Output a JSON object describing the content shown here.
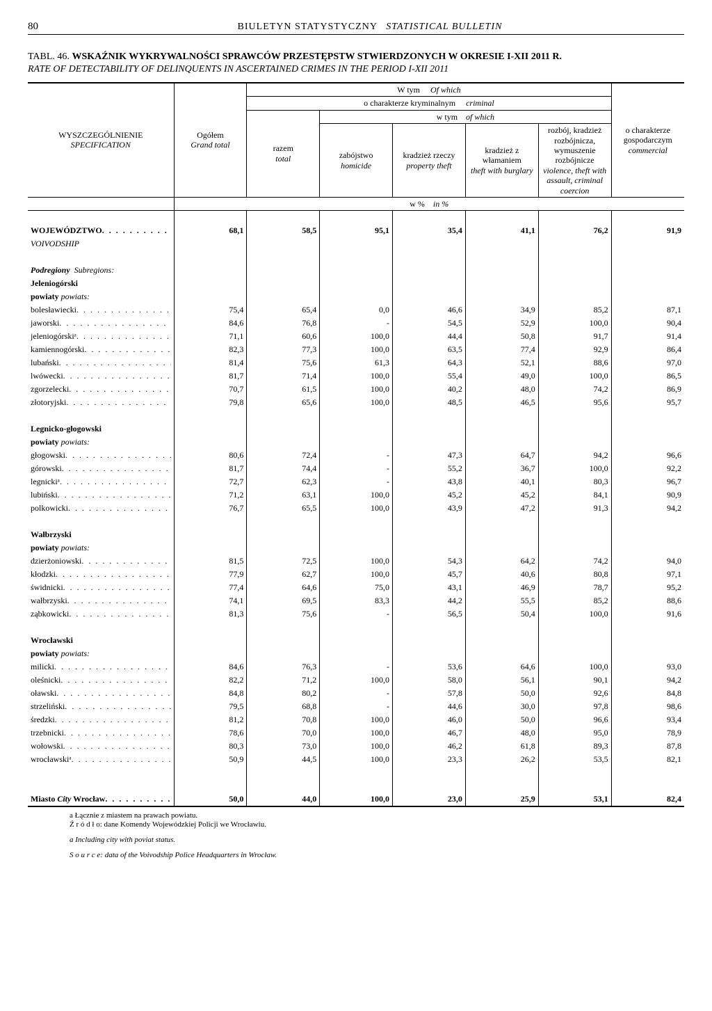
{
  "page_number": "80",
  "header_pl": "BIULETYN STATYSTYCZNY",
  "header_en": "STATISTICAL BULLETIN",
  "table_number": "TABL. 46.",
  "title_pl": "WSKAŹNIK WYKRYWALNOŚCI SPRAWCÓW PRZESTĘPSTW STWIERDZONYCH W OKRESIE I-XII 2011 R.",
  "title_en": "RATE OF DETECTABILITY OF DELINQUENTS IN ASCERTAINED CRIMES IN THE PERIOD I-XII 2011",
  "head": {
    "spec_pl": "WYSZCZEGÓLNIENIE",
    "spec_en": "SPECIFICATION",
    "ogolem_pl": "Ogółem",
    "ogolem_en": "Grand total",
    "wtym_pl": "W tym",
    "wtym_en": "Of which",
    "kryminal_pl": "o charakterze kryminalnym",
    "kryminal_en": "criminal",
    "wtym2_pl": "w tym",
    "wtym2_en": "of which",
    "razem_pl": "razem",
    "razem_en": "total",
    "zabojstwo_pl": "zabójstwo",
    "zabojstwo_en": "homicide",
    "kradziez_pl": "kradzież rzeczy",
    "kradziez_en": "property theft",
    "wlam_pl": "kradzież z włamaniem",
    "wlam_en": "theft with burglary",
    "rozboj_pl": "rozbój, kradzież rozbójnicza, wymuszenie rozbójnicze",
    "rozboj_en": "violence, theft with assault, criminal coercion",
    "gosp_pl": "o charakterze gospodarczym",
    "gosp_en": "commercial",
    "unit_pl": "w %",
    "unit_en": "in %"
  },
  "groups": [
    {
      "voiv_row": {
        "label_pl": "WOJEWÓDZTWO",
        "label_en": "VOIVODSHIP",
        "v": [
          "68,1",
          "58,5",
          "95,1",
          "35,4",
          "41,1",
          "76,2",
          "91,9"
        ]
      }
    },
    {
      "subregions_pl": "Podregiony",
      "subregions_en": "Subregions:",
      "name": "Jeleniogórski",
      "powiaty_pl": "powiaty",
      "powiaty_en": "powiats:",
      "rows": [
        {
          "label": "bolesławiecki",
          "v": [
            "75,4",
            "65,4",
            "0,0",
            "46,6",
            "34,9",
            "85,2",
            "87,1"
          ]
        },
        {
          "label": "jaworski",
          "v": [
            "84,6",
            "76,8",
            "-",
            "54,5",
            "52,9",
            "100,0",
            "90,4"
          ]
        },
        {
          "label": "jeleniogórskiᵃ",
          "v": [
            "71,1",
            "60,6",
            "100,0",
            "44,4",
            "50,8",
            "91,7",
            "91,4"
          ]
        },
        {
          "label": "kamiennogórski",
          "v": [
            "82,3",
            "77,3",
            "100,0",
            "63,5",
            "77,4",
            "92,9",
            "86,4"
          ]
        },
        {
          "label": "lubański",
          "v": [
            "81,4",
            "75,6",
            "61,3",
            "64,3",
            "52,1",
            "88,6",
            "97,0"
          ]
        },
        {
          "label": "lwówecki",
          "v": [
            "81,7",
            "71,4",
            "100,0",
            "55,4",
            "49,0",
            "100,0",
            "86,5"
          ]
        },
        {
          "label": "zgorzelecki",
          "v": [
            "70,7",
            "61,5",
            "100,0",
            "40,2",
            "48,0",
            "74,2",
            "86,9"
          ]
        },
        {
          "label": "złotoryjski",
          "v": [
            "79,8",
            "65,6",
            "100,0",
            "48,5",
            "46,5",
            "95,6",
            "95,7"
          ]
        }
      ]
    },
    {
      "name": "Legnicko-głogowski",
      "powiaty_pl": "powiaty",
      "powiaty_en": "powiats:",
      "rows": [
        {
          "label": "głogowski",
          "v": [
            "80,6",
            "72,4",
            "-",
            "47,3",
            "64,7",
            "94,2",
            "96,6"
          ]
        },
        {
          "label": "górowski",
          "v": [
            "81,7",
            "74,4",
            "-",
            "55,2",
            "36,7",
            "100,0",
            "92,2"
          ]
        },
        {
          "label": "legnickiᵃ",
          "v": [
            "72,7",
            "62,3",
            "-",
            "43,8",
            "40,1",
            "80,3",
            "96,7"
          ]
        },
        {
          "label": "lubiński",
          "v": [
            "71,2",
            "63,1",
            "100,0",
            "45,2",
            "45,2",
            "84,1",
            "90,9"
          ]
        },
        {
          "label": "polkowicki",
          "v": [
            "76,7",
            "65,5",
            "100,0",
            "43,9",
            "47,2",
            "91,3",
            "94,2"
          ]
        }
      ]
    },
    {
      "name": "Wałbrzyski",
      "powiaty_pl": "powiaty",
      "powiaty_en": "powiats:",
      "rows": [
        {
          "label": "dzierżoniowski",
          "v": [
            "81,5",
            "72,5",
            "100,0",
            "54,3",
            "64,2",
            "74,2",
            "94,0"
          ]
        },
        {
          "label": "kłodzki",
          "v": [
            "77,9",
            "62,7",
            "100,0",
            "45,7",
            "40,6",
            "80,8",
            "97,1"
          ]
        },
        {
          "label": "świdnicki",
          "v": [
            "77,4",
            "64,6",
            "75,0",
            "43,1",
            "46,9",
            "78,7",
            "95,2"
          ]
        },
        {
          "label": "wałbrzyski",
          "v": [
            "74,1",
            "69,5",
            "83,3",
            "44,2",
            "55,5",
            "85,2",
            "88,6"
          ]
        },
        {
          "label": "ząbkowicki",
          "v": [
            "81,3",
            "75,6",
            "-",
            "56,5",
            "50,4",
            "100,0",
            "91,6"
          ]
        }
      ]
    },
    {
      "name": "Wrocławski",
      "powiaty_pl": "powiaty",
      "powiaty_en": "powiats:",
      "rows": [
        {
          "label": "milicki",
          "v": [
            "84,6",
            "76,3",
            "-",
            "53,6",
            "64,6",
            "100,0",
            "93,0"
          ]
        },
        {
          "label": "oleśnicki",
          "v": [
            "82,2",
            "71,2",
            "100,0",
            "58,0",
            "56,1",
            "90,1",
            "94,2"
          ]
        },
        {
          "label": "oławski",
          "v": [
            "84,8",
            "80,2",
            "-",
            "57,8",
            "50,0",
            "92,6",
            "84,8"
          ]
        },
        {
          "label": "strzeliński",
          "v": [
            "79,5",
            "68,8",
            "-",
            "44,6",
            "30,0",
            "97,8",
            "98,6"
          ]
        },
        {
          "label": "średzki",
          "v": [
            "81,2",
            "70,8",
            "100,0",
            "46,0",
            "50,0",
            "96,6",
            "93,4"
          ]
        },
        {
          "label": "trzebnicki",
          "v": [
            "78,6",
            "70,0",
            "100,0",
            "46,7",
            "48,0",
            "95,0",
            "78,9"
          ]
        },
        {
          "label": "wołowski",
          "v": [
            "80,3",
            "73,0",
            "100,0",
            "46,2",
            "61,8",
            "89,3",
            "87,8"
          ]
        },
        {
          "label": "wrocławskiᵃ",
          "v": [
            "50,9",
            "44,5",
            "100,0",
            "23,3",
            "26,2",
            "53,5",
            "82,1"
          ]
        }
      ]
    },
    {
      "city_row": {
        "label_pl": "Miasto",
        "label_en": "City",
        "label_city": "Wrocław",
        "v": [
          "50,0",
          "44,0",
          "100,0",
          "23,0",
          "25,9",
          "53,1",
          "82,4"
        ]
      }
    }
  ],
  "footnotes": {
    "a_pl": "a Łącznie z miastem na prawach powiatu.",
    "src_pl": "Ź r ó d ł o: dane Komendy Wojewódzkiej Policji we Wrocławiu.",
    "a_en": "a Including city with poviat status.",
    "src_en": "S o u r c e: data of the Voivodship Police Headquarters in Wrocław."
  }
}
